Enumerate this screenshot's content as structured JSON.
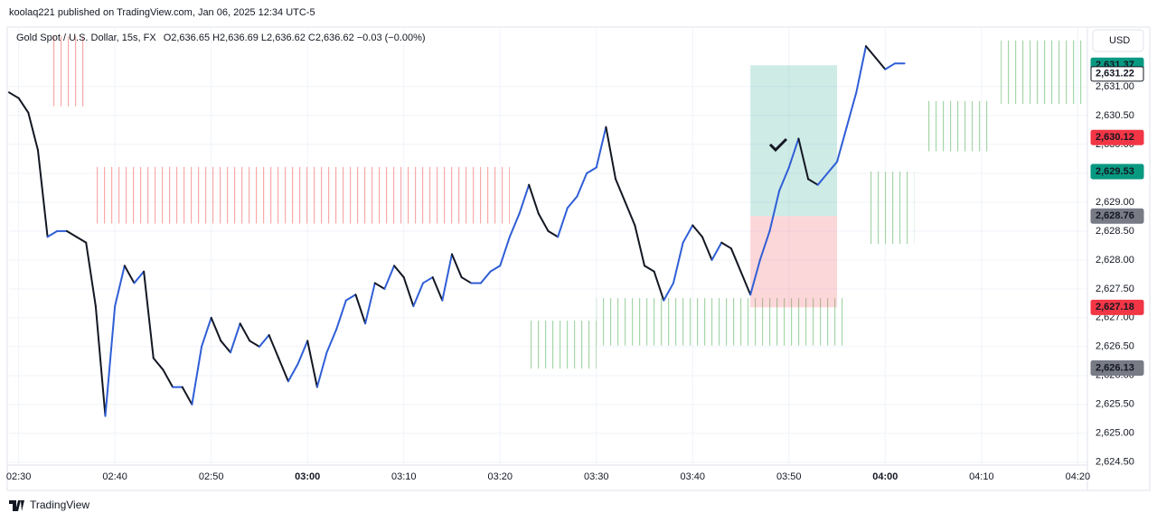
{
  "header": {
    "publisher": "koolaq221 published on TradingView.com, Jan 06, 2025 12:34 UTC-5"
  },
  "legend": {
    "symbol": "Gold Spot / U.S. Dollar, 15s, FX",
    "ohlc": "O2,636.65 H2,636.69 L2,636.62 C2,636.62 −0.03 (−0.00%)"
  },
  "currency_button": "USD",
  "footer": {
    "brand": "TradingView"
  },
  "chart_data": {
    "type": "line",
    "x": [
      "02:29",
      "02:30",
      "02:31",
      "02:32",
      "02:33",
      "02:34",
      "02:35",
      "02:36",
      "02:37",
      "02:38",
      "02:39",
      "02:40",
      "02:41",
      "02:42",
      "02:43",
      "02:44",
      "02:45",
      "02:46",
      "02:47",
      "02:48",
      "02:49",
      "02:50",
      "02:51",
      "02:52",
      "02:53",
      "02:54",
      "02:55",
      "02:56",
      "02:57",
      "02:58",
      "02:59",
      "03:00",
      "03:01",
      "03:02",
      "03:03",
      "03:04",
      "03:05",
      "03:06",
      "03:07",
      "03:08",
      "03:09",
      "03:10",
      "03:11",
      "03:12",
      "03:13",
      "03:14",
      "03:15",
      "03:16",
      "03:17",
      "03:18",
      "03:19",
      "03:20",
      "03:21",
      "03:22",
      "03:23",
      "03:24",
      "03:25",
      "03:26",
      "03:27",
      "03:28",
      "03:29",
      "03:30",
      "03:31",
      "03:32",
      "03:33",
      "03:34",
      "03:35",
      "03:36",
      "03:37",
      "03:38",
      "03:39",
      "03:40",
      "03:41",
      "03:42",
      "03:43",
      "03:44",
      "03:45",
      "03:46",
      "03:47",
      "03:48",
      "03:49",
      "03:50",
      "03:51",
      "03:52",
      "03:53",
      "03:54",
      "03:55",
      "03:56",
      "03:57",
      "03:58",
      "03:59",
      "04:00",
      "04:01",
      "04:02"
    ],
    "series": [
      {
        "name": "Gold Spot / U.S. Dollar",
        "up_color": "#2f5ed6",
        "down_color": "#131722",
        "values": [
          2630.9,
          2630.8,
          2630.55,
          2629.9,
          2628.4,
          2628.5,
          2628.5,
          2628.4,
          2628.3,
          2627.2,
          2625.3,
          2627.2,
          2627.9,
          2627.6,
          2627.8,
          2626.3,
          2626.1,
          2625.8,
          2625.8,
          2625.5,
          2626.5,
          2627.0,
          2626.6,
          2626.4,
          2626.9,
          2626.6,
          2626.5,
          2626.7,
          2626.3,
          2625.9,
          2626.2,
          2626.6,
          2625.8,
          2626.4,
          2626.8,
          2627.3,
          2627.4,
          2626.9,
          2627.6,
          2627.5,
          2627.9,
          2627.7,
          2627.2,
          2627.6,
          2627.7,
          2627.3,
          2628.1,
          2627.7,
          2627.6,
          2627.6,
          2627.8,
          2627.9,
          2628.4,
          2628.8,
          2629.3,
          2628.8,
          2628.5,
          2628.4,
          2628.9,
          2629.1,
          2629.5,
          2629.6,
          2630.3,
          2629.4,
          2629.0,
          2628.6,
          2627.9,
          2627.8,
          2627.3,
          2627.6,
          2628.3,
          2628.6,
          2628.4,
          2628.0,
          2628.3,
          2628.2,
          2627.8,
          2627.4,
          2628.0,
          2628.5,
          2629.2,
          2629.6,
          2630.1,
          2629.4,
          2629.3,
          2629.5,
          2629.7,
          2630.3,
          2630.9,
          2631.7,
          2631.5,
          2631.3,
          2631.4,
          2631.4
        ]
      }
    ],
    "xlim": [
      "02:29",
      "04:21"
    ],
    "xticks": [
      "02:30",
      "02:40",
      "02:50",
      "03:00",
      "03:10",
      "03:20",
      "03:30",
      "03:40",
      "03:50",
      "04:00",
      "04:10",
      "04:20"
    ],
    "bold_xticks": [
      3,
      9
    ],
    "ylim": [
      2624.45,
      2632.03
    ],
    "yticks": [
      {
        "value": 2624.5,
        "label": "2,624.50"
      },
      {
        "value": 2625,
        "label": "2,625.00"
      },
      {
        "value": 2625.5,
        "label": "2,625.50"
      },
      {
        "value": 2626,
        "label": "2,626.00"
      },
      {
        "value": 2626.5,
        "label": "2,626.50"
      },
      {
        "value": 2627,
        "label": "2,627.00"
      },
      {
        "value": 2627.5,
        "label": "2,627.50"
      },
      {
        "value": 2628,
        "label": "2,628.00"
      },
      {
        "value": 2628.5,
        "label": "2,628.50"
      },
      {
        "value": 2629,
        "label": "2,629.00"
      },
      {
        "value": 2629.5,
        "label": "2,629.50"
      },
      {
        "value": 2630,
        "label": "2,630.00"
      },
      {
        "value": 2630.5,
        "label": "2,630.50"
      },
      {
        "value": 2631,
        "label": "2,631.00"
      }
    ],
    "grid": true,
    "zones": [
      {
        "color": "#f7a9a8",
        "start": "02:33",
        "end": "02:37",
        "low": 2630.66,
        "high": 2631.87
      },
      {
        "color": "#f7a9a8",
        "start": "02:38",
        "end": "03:21",
        "low": 2628.63,
        "high": 2629.61
      },
      {
        "color": "#a5d6a7",
        "start": "03:23",
        "end": "03:30",
        "low": 2626.12,
        "high": 2626.95
      },
      {
        "color": "#a5d6a7",
        "start": "03:30",
        "end": "03:56",
        "low": 2626.52,
        "high": 2627.34
      },
      {
        "color": "#a5d6a7",
        "start": "03:58",
        "end": "04:03",
        "low": 2628.28,
        "high": 2629.53
      },
      {
        "color": "#a5d6a7",
        "start": "04:04",
        "end": "04:11",
        "low": 2629.88,
        "high": 2630.75
      },
      {
        "color": "#a5d6a7",
        "start": "04:12",
        "end": "04:21",
        "low": 2630.7,
        "high": 2631.8
      }
    ],
    "position": {
      "start": "03:46",
      "end": "03:55",
      "entry": 2628.76,
      "target": 2631.37,
      "stop": 2627.18
    },
    "price_labels": [
      {
        "value": 2631.37,
        "label": "2,631.37",
        "color": "#089981",
        "text_color": "#ffffff"
      },
      {
        "value": 2631.22,
        "label": "2,631.22",
        "color": "#ffffff",
        "text_color": "#131722"
      },
      {
        "value": 2630.12,
        "label": "2,630.12",
        "color": "#f23645",
        "text_color": "#ffffff"
      },
      {
        "value": 2629.53,
        "label": "2,629.53",
        "color": "#089981",
        "text_color": "#ffffff"
      },
      {
        "value": 2628.76,
        "label": "2,628.76",
        "color": "#787b86",
        "text_color": "#ffffff"
      },
      {
        "value": 2627.18,
        "label": "2,627.18",
        "color": "#f23645",
        "text_color": "#ffffff"
      },
      {
        "value": 2626.13,
        "label": "2,626.13",
        "color": "#787b86",
        "text_color": "#ffffff"
      }
    ]
  }
}
